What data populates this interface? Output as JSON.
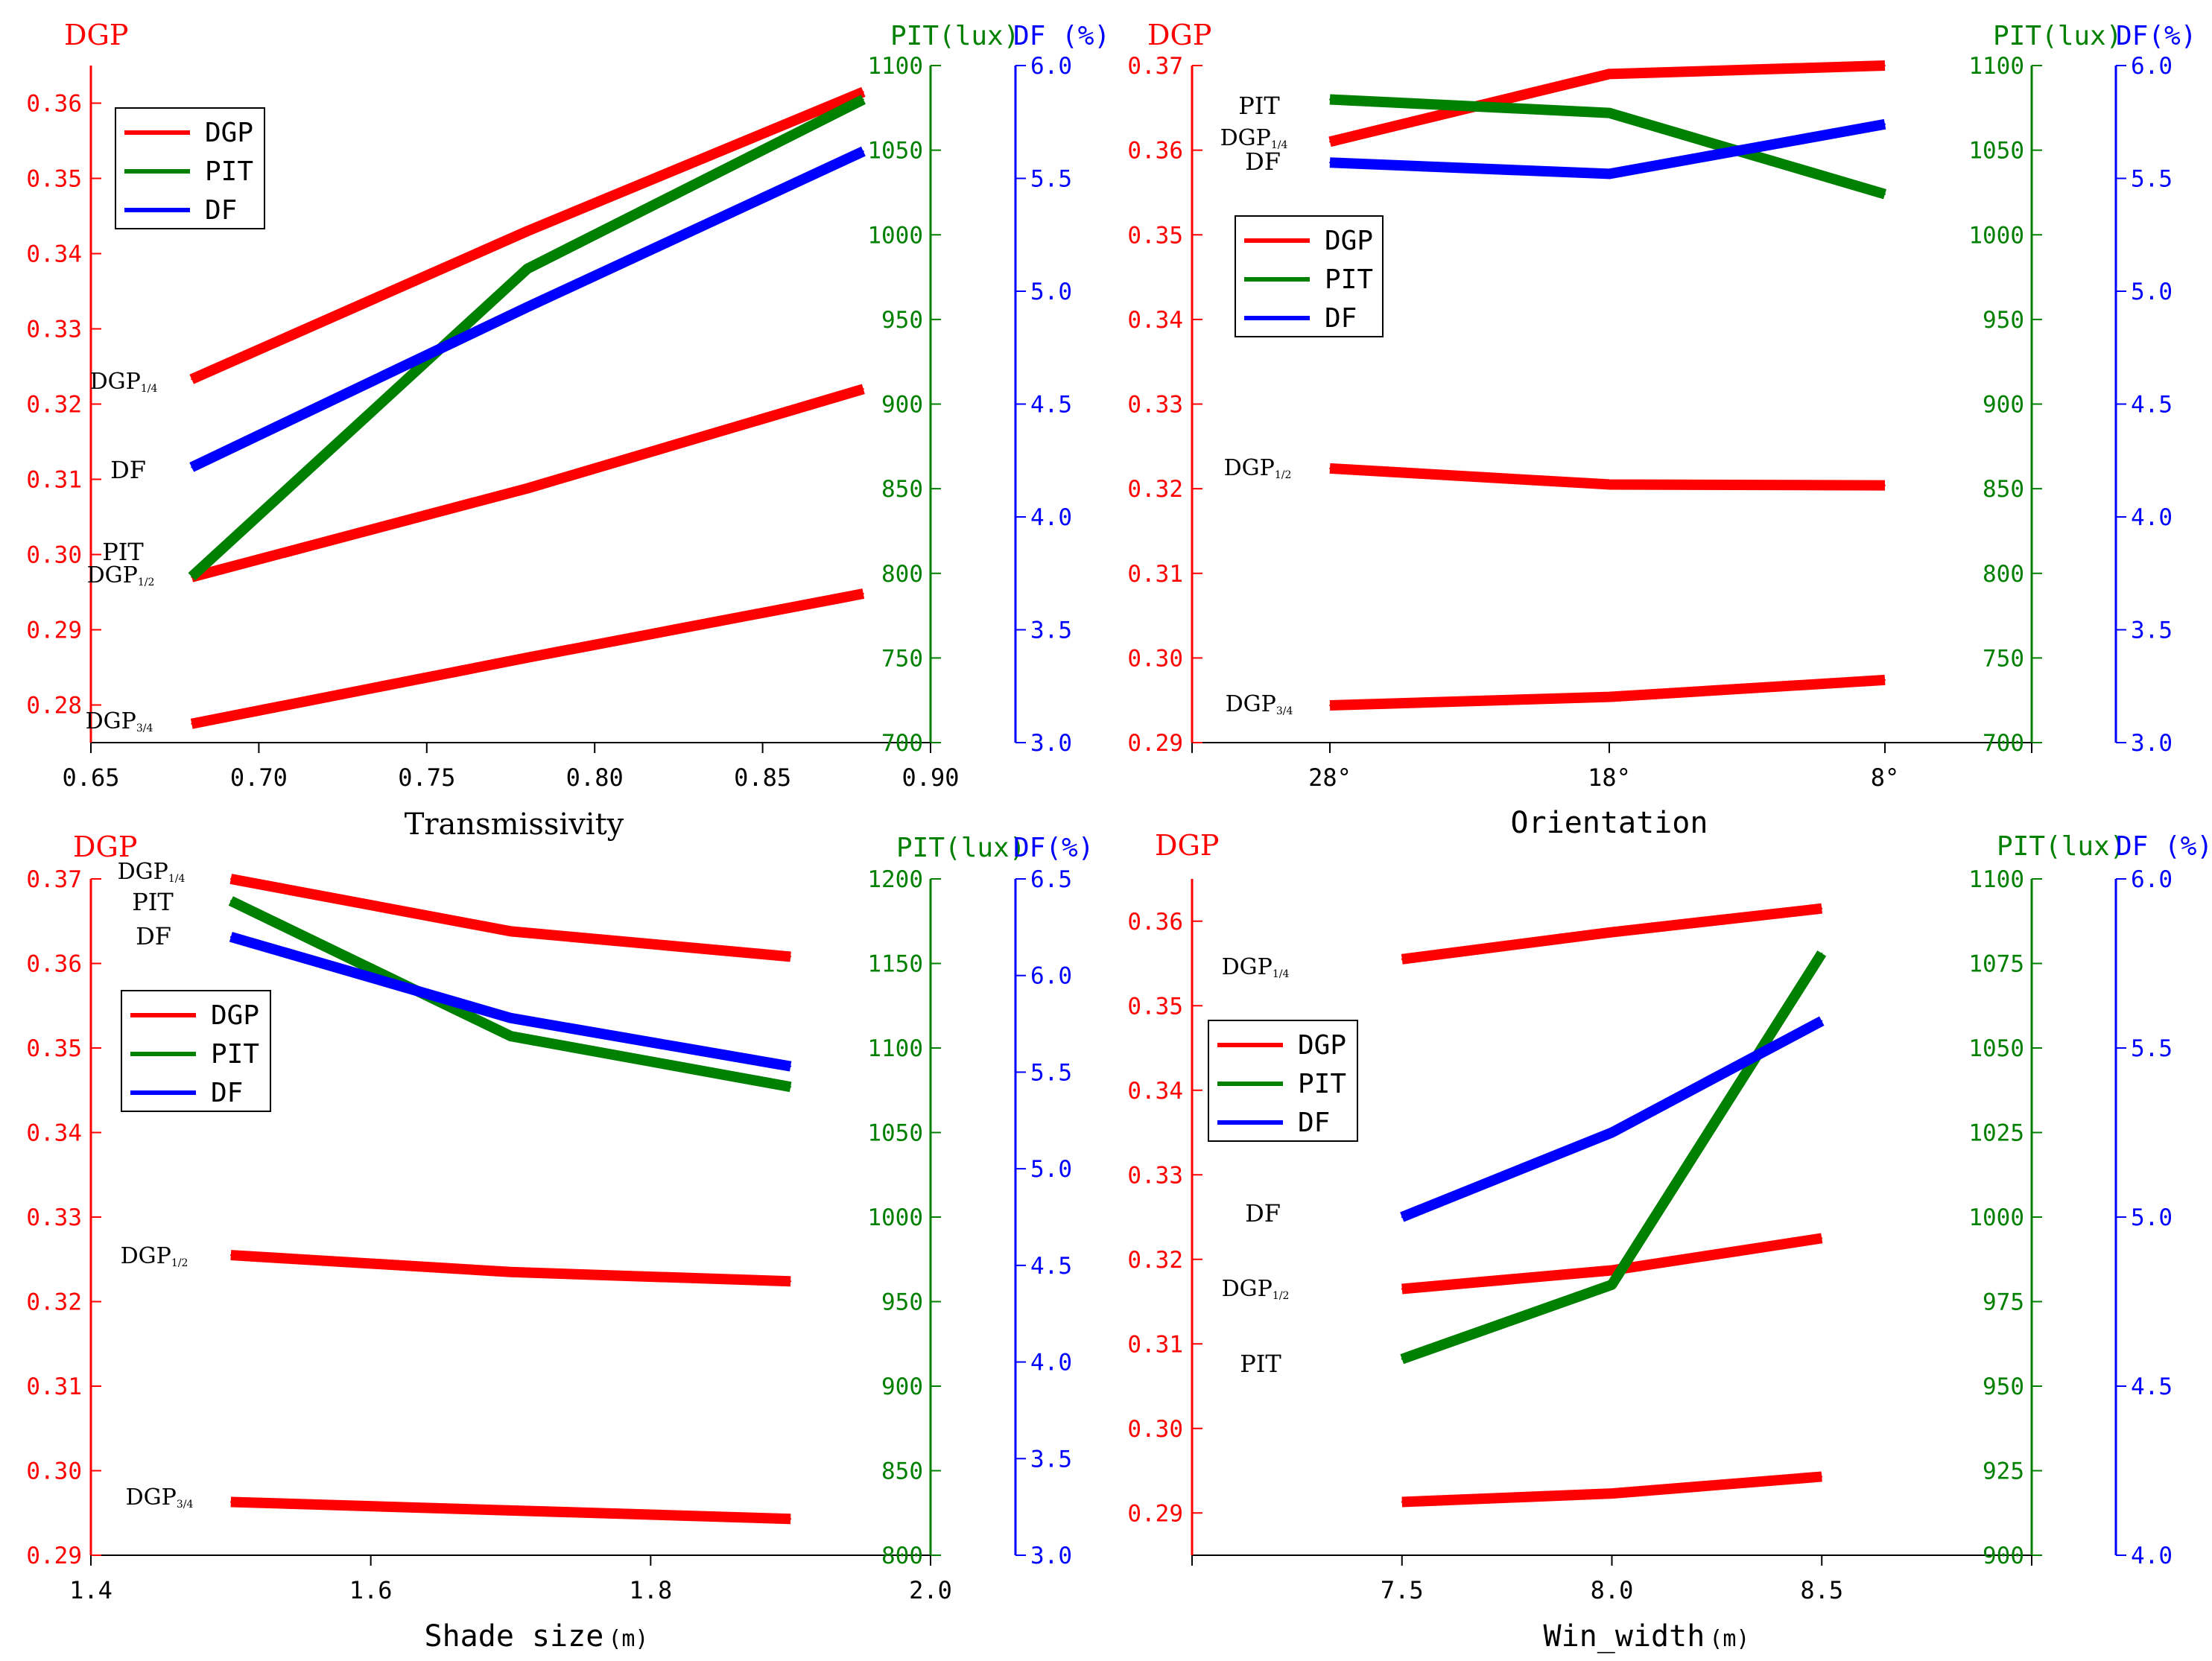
{
  "colors": {
    "dgp": "#ff0000",
    "pit": "#008000",
    "df": "#0000ff",
    "axis": "#000000"
  },
  "chart_data": [
    {
      "type": "line",
      "xlabel": "Transmissivity",
      "x": [
        0.68,
        0.78,
        0.88
      ],
      "xlim": [
        0.65,
        0.9
      ],
      "xticks": [
        "0.65",
        "0.70",
        "0.75",
        "0.80",
        "0.85",
        "0.90"
      ],
      "dgp_axis": {
        "label": "DGP",
        "ylim": [
          0.275,
          0.365
        ],
        "ticks": [
          "0.28",
          "0.29",
          "0.30",
          "0.31",
          "0.32",
          "0.33",
          "0.34",
          "0.35",
          "0.36"
        ]
      },
      "pit_axis": {
        "label": "PIT(lux)",
        "ylim": [
          700,
          1100
        ],
        "ticks": [
          "700",
          "750",
          "800",
          "850",
          "900",
          "950",
          "1000",
          "1050",
          "1100"
        ]
      },
      "df_axis": {
        "label": "DF (%)",
        "ylim": [
          3.0,
          6.0
        ],
        "ticks": [
          "3.0",
          "3.5",
          "4.0",
          "4.5",
          "5.0",
          "5.5",
          "6.0"
        ]
      },
      "series": [
        {
          "name": "DGP1/4",
          "axis": "dgp",
          "values": [
            0.3233,
            0.343,
            0.3615
          ]
        },
        {
          "name": "DGP1/2",
          "axis": "dgp",
          "values": [
            0.297,
            0.3088,
            0.322
          ]
        },
        {
          "name": "DGP3/4",
          "axis": "dgp",
          "values": [
            0.2775,
            0.2863,
            0.2948
          ]
        },
        {
          "name": "PIT",
          "axis": "pit",
          "values": [
            798,
            980,
            1080
          ]
        },
        {
          "name": "DF",
          "axis": "df",
          "values": [
            4.22,
            4.93,
            5.62
          ]
        }
      ],
      "labels": {
        "dgp14": "DGP",
        "dgp14_sub": "1/4",
        "dgp12": "DGP",
        "dgp12_sub": "1/2",
        "dgp34": "DGP",
        "dgp34_sub": "3/4",
        "pit": "PIT",
        "df": "DF"
      },
      "legend": [
        "DGP",
        "PIT",
        "DF"
      ]
    },
    {
      "type": "line",
      "xlabel": "Orientation",
      "categories": [
        "28°",
        "18°",
        "8°"
      ],
      "dgp_axis": {
        "label": "DGP",
        "ylim": [
          0.29,
          0.37
        ],
        "ticks": [
          "0.29",
          "0.30",
          "0.31",
          "0.32",
          "0.33",
          "0.34",
          "0.35",
          "0.36",
          "0.37"
        ]
      },
      "pit_axis": {
        "label": "PIT(lux)",
        "ylim": [
          700,
          1100
        ],
        "ticks": [
          "700",
          "750",
          "800",
          "850",
          "900",
          "950",
          "1000",
          "1050",
          "1100"
        ]
      },
      "df_axis": {
        "label": "DF(%)",
        "ylim": [
          3.0,
          6.0
        ],
        "ticks": [
          "3.0",
          "3.5",
          "4.0",
          "4.5",
          "5.0",
          "5.5",
          "6.0"
        ]
      },
      "series": [
        {
          "name": "DGP1/4",
          "axis": "dgp",
          "values": [
            0.361,
            0.369,
            0.37
          ]
        },
        {
          "name": "DGP1/2",
          "axis": "dgp",
          "values": [
            0.3224,
            0.3205,
            0.3204
          ]
        },
        {
          "name": "DGP3/4",
          "axis": "dgp",
          "values": [
            0.2944,
            0.2954,
            0.2974
          ]
        },
        {
          "name": "PIT",
          "axis": "pit",
          "values": [
            1080,
            1072,
            1024
          ]
        },
        {
          "name": "DF",
          "axis": "df",
          "values": [
            5.57,
            5.52,
            5.74
          ]
        }
      ],
      "labels": {
        "dgp14": "DGP",
        "dgp14_sub": "1/4",
        "dgp12": "DGP",
        "dgp12_sub": "1/2",
        "dgp34": "DGP",
        "dgp34_sub": "3/4",
        "pit": "PIT",
        "df": "DF"
      },
      "legend": [
        "DGP",
        "PIT",
        "DF"
      ]
    },
    {
      "type": "line",
      "xlabel": "Shade size",
      "xlabel_unit": "(m)",
      "x": [
        1.5,
        1.7,
        1.9
      ],
      "xlim": [
        1.4,
        2.0
      ],
      "xticks": [
        "1.4",
        "1.6",
        "1.8",
        "2.0"
      ],
      "dgp_axis": {
        "label": "DGP",
        "ylim": [
          0.29,
          0.37
        ],
        "ticks": [
          "0.29",
          "0.30",
          "0.31",
          "0.32",
          "0.33",
          "0.34",
          "0.35",
          "0.36",
          "0.37"
        ]
      },
      "pit_axis": {
        "label": "PIT(lux)",
        "ylim": [
          800,
          1200
        ],
        "ticks": [
          "800",
          "850",
          "900",
          "950",
          "1000",
          "1050",
          "1100",
          "1150",
          "1200"
        ]
      },
      "df_axis": {
        "label": "DF(%)",
        "ylim": [
          3.0,
          6.5
        ],
        "ticks": [
          "3.0",
          "3.5",
          "4.0",
          "4.5",
          "5.0",
          "5.5",
          "6.0",
          "6.5"
        ]
      },
      "series": [
        {
          "name": "DGP1/4",
          "axis": "dgp",
          "values": [
            0.37,
            0.3638,
            0.3608
          ]
        },
        {
          "name": "DGP1/2",
          "axis": "dgp",
          "values": [
            0.3255,
            0.3235,
            0.3224
          ]
        },
        {
          "name": "DGP3/4",
          "axis": "dgp",
          "values": [
            0.2963,
            0.2953,
            0.2943
          ]
        },
        {
          "name": "PIT",
          "axis": "pit",
          "values": [
            1187,
            1107,
            1077
          ]
        },
        {
          "name": "DF",
          "axis": "df",
          "values": [
            6.2,
            5.78,
            5.53
          ]
        }
      ],
      "labels": {
        "dgp14": "DGP",
        "dgp14_sub": "1/4",
        "dgp12": "DGP",
        "dgp12_sub": "1/2",
        "dgp34": "DGP",
        "dgp34_sub": "3/4",
        "pit": "PIT",
        "df": "DF"
      },
      "legend": [
        "DGP",
        "PIT",
        "DF"
      ]
    },
    {
      "type": "line",
      "xlabel": "Win_width",
      "xlabel_unit": "(m)",
      "x": [
        7.5,
        8.0,
        8.5
      ],
      "xlim": [
        7.0,
        9.0
      ],
      "xticks": [
        "7.5",
        "8.0",
        "8.5"
      ],
      "dgp_axis": {
        "label": "DGP",
        "ylim": [
          0.285,
          0.365
        ],
        "ticks": [
          "0.29",
          "0.30",
          "0.31",
          "0.32",
          "0.33",
          "0.34",
          "0.35",
          "0.36"
        ]
      },
      "pit_axis": {
        "label": "PIT(lux)",
        "ylim": [
          900,
          1100
        ],
        "ticks": [
          "900",
          "925",
          "950",
          "975",
          "1000",
          "1025",
          "1050",
          "1075",
          "1100"
        ]
      },
      "df_axis": {
        "label": "DF (%)",
        "ylim": [
          4.0,
          6.0
        ],
        "ticks": [
          "4.0",
          "4.5",
          "5.0",
          "5.5",
          "6.0"
        ]
      },
      "series": [
        {
          "name": "DGP1/4",
          "axis": "dgp",
          "values": [
            0.3555,
            0.3587,
            0.3615
          ]
        },
        {
          "name": "DGP1/2",
          "axis": "dgp",
          "values": [
            0.3165,
            0.3187,
            0.3225
          ]
        },
        {
          "name": "DGP3/4",
          "axis": "dgp",
          "values": [
            0.2913,
            0.2923,
            0.2943
          ]
        },
        {
          "name": "PIT",
          "axis": "pit",
          "values": [
            958,
            980,
            1078
          ]
        },
        {
          "name": "DF",
          "axis": "df",
          "values": [
            5.0,
            5.25,
            5.58
          ]
        }
      ],
      "labels": {
        "dgp14": "DGP",
        "dgp14_sub": "1/4",
        "dgp12": "DGP",
        "dgp12_sub": "1/2",
        "dgp34": "DGP",
        "dgp34_sub": "3/4",
        "pit": "PIT",
        "df": "DF"
      },
      "legend": [
        "DGP",
        "PIT",
        "DF"
      ]
    }
  ]
}
